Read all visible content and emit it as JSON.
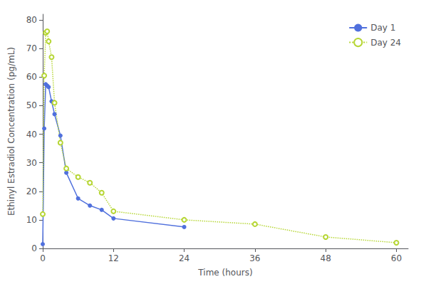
{
  "chart_data": {
    "type": "line",
    "xlabel": "Time (hours)",
    "ylabel": "Ethinyl Estradiol Concentration (pg/mL)",
    "xlim": [
      0,
      62
    ],
    "ylim": [
      0,
      82
    ],
    "xticks": [
      0,
      12,
      24,
      36,
      48,
      60
    ],
    "yticks": [
      0,
      10,
      20,
      30,
      40,
      50,
      60,
      70,
      80
    ],
    "grid": false,
    "legend": "upper right",
    "series": [
      {
        "name": "Day 1",
        "x": [
          0,
          0.25,
          0.5,
          0.75,
          1.0,
          1.5,
          2.0,
          3.0,
          4.0,
          6.0,
          8.0,
          10.0,
          12.0,
          24.0
        ],
        "values": [
          1.5,
          42.0,
          57.5,
          57.0,
          56.5,
          51.5,
          47.0,
          39.5,
          26.5,
          17.5,
          15.0,
          13.5,
          10.5,
          7.5
        ],
        "marker": "circle",
        "line_style": "solid"
      },
      {
        "name": "Day 24",
        "x": [
          0,
          0.25,
          0.5,
          0.75,
          1.0,
          1.5,
          2.0,
          3.0,
          4.0,
          6.0,
          8.0,
          10.0,
          12.0,
          24.0,
          36.0,
          48.0,
          60.0
        ],
        "values": [
          12.0,
          60.5,
          75.5,
          76.0,
          72.5,
          67.0,
          51.0,
          37.0,
          28.0,
          25.0,
          23.0,
          19.5,
          13.0,
          10.0,
          8.5,
          4.0,
          2.0
        ],
        "marker": "open circle",
        "line_style": "dotted"
      }
    ]
  }
}
